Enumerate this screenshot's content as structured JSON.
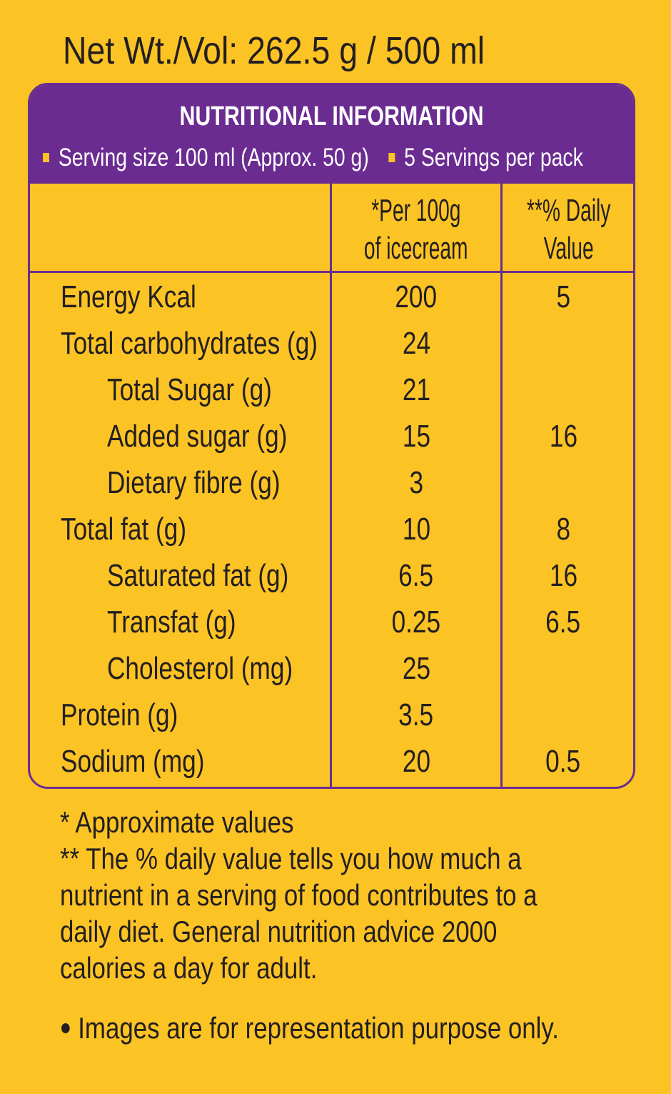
{
  "net_weight": "Net Wt./Vol: 262.5 g / 500 ml",
  "panel": {
    "title": "NUTRITIONAL INFORMATION",
    "serving_size": "Serving size 100 ml (Approx. 50 g)",
    "servings_per_pack": "5 Servings per pack"
  },
  "table": {
    "headers": {
      "per100_line1": "*Per 100g",
      "per100_line2": "of icecream",
      "dv_line1": "**% Daily",
      "dv_line2": "Value"
    },
    "rows": [
      {
        "label": "Energy Kcal",
        "per100": "200",
        "dv": "5"
      },
      {
        "label": "Total carbohydrates (g)",
        "per100": "24",
        "dv": ""
      },
      {
        "label": "Total Sugar (g)",
        "per100": "21",
        "dv": ""
      },
      {
        "label": "Added sugar (g)",
        "per100": "15",
        "dv": "16"
      },
      {
        "label": "Dietary fibre (g)",
        "per100": "3",
        "dv": ""
      },
      {
        "label": "Total fat (g)",
        "per100": "10",
        "dv": "8"
      },
      {
        "label": "Saturated fat (g)",
        "per100": "6.5",
        "dv": "16"
      },
      {
        "label": "Transfat (g)",
        "per100": "0.25",
        "dv": "6.5"
      },
      {
        "label": "Cholesterol (mg)",
        "per100": "25",
        "dv": ""
      },
      {
        "label": "Protein (g)",
        "per100": "3.5",
        "dv": ""
      },
      {
        "label": "Sodium (mg)",
        "per100": "20",
        "dv": "0.5"
      }
    ]
  },
  "notes": {
    "approx": "* Approximate values",
    "daily_value_line1": "** The % daily value tells you how much a",
    "daily_value_line2": "nutrient in a serving of food contributes to a",
    "daily_value_line3": "daily diet. General nutrition advice 2000",
    "daily_value_line4": "calories a day for adult."
  },
  "disclaimer": "Images are for representation purpose only.",
  "colors": {
    "background": "#fcc325",
    "purple": "#6b2c91",
    "text": "#231f20"
  }
}
